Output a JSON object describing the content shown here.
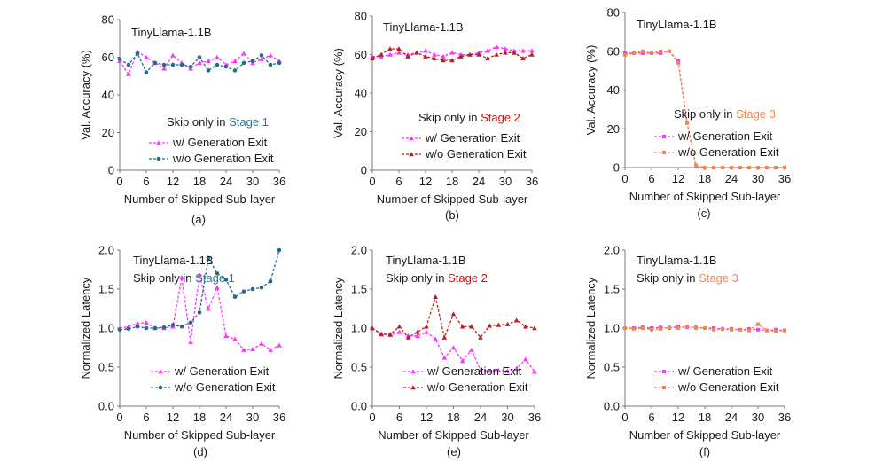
{
  "figure": {
    "captions": [
      "(a)",
      "(b)",
      "(c)",
      "(d)",
      "(e)",
      "(f)"
    ]
  },
  "colors": {
    "with_exit": "#ff33ff",
    "without_exit_stage1": "#1f6f8b",
    "without_exit_stage2": "#b22222",
    "without_exit_stage3": "#f08a4b",
    "stage1_label": "#2a7a9a",
    "stage2_label": "#d01010",
    "stage3_label": "#f08a4b"
  },
  "chart_data": [
    {
      "type": "line",
      "panel": "a",
      "title": "TinyLlama-1.1B",
      "annotation_prefix": "Skip only in ",
      "annotation_stage": "Stage 1",
      "stage_color_key": "stage1_label",
      "xlabel": "Number of Skipped Sub-layer",
      "ylabel": "Val. Accuracy (%)",
      "xlim": [
        0,
        36
      ],
      "ylim": [
        0,
        80
      ],
      "xticks": [
        0,
        6,
        12,
        18,
        24,
        30,
        36
      ],
      "yticks": [
        0,
        20,
        40,
        60,
        80
      ],
      "legend_position": "center-right",
      "series": [
        {
          "name": "w/ Generation Exit",
          "color_key": "with_exit",
          "marker": "triangle",
          "x": [
            0,
            2,
            4,
            6,
            8,
            10,
            12,
            14,
            16,
            18,
            20,
            22,
            24,
            26,
            28,
            30,
            32,
            34,
            36
          ],
          "y": [
            58,
            51,
            63,
            60,
            57,
            54,
            61,
            57,
            54,
            57,
            58,
            60,
            56,
            58,
            62,
            57,
            59,
            61,
            58
          ]
        },
        {
          "name": "w/o Generation Exit",
          "color_key": "without_exit_stage1",
          "marker": "circle",
          "x": [
            0,
            2,
            4,
            6,
            8,
            10,
            12,
            14,
            16,
            18,
            20,
            22,
            24,
            26,
            28,
            30,
            32,
            34,
            36
          ],
          "y": [
            59,
            56,
            62,
            52,
            57,
            56,
            56,
            56,
            55,
            60,
            53,
            56,
            55,
            53,
            57,
            58,
            61,
            56,
            57
          ]
        }
      ]
    },
    {
      "type": "line",
      "panel": "b",
      "title": "TinyLlama-1.1B",
      "annotation_prefix": "Skip only in ",
      "annotation_stage": "Stage 2",
      "stage_color_key": "stage2_label",
      "xlabel": "Number of Skipped Sub-layer",
      "ylabel": "Val. Accuracy (%)",
      "xlim": [
        0,
        36
      ],
      "ylim": [
        0,
        80
      ],
      "xticks": [
        0,
        6,
        12,
        18,
        24,
        30,
        36
      ],
      "yticks": [
        0,
        20,
        40,
        60,
        80
      ],
      "legend_position": "lower-right",
      "series": [
        {
          "name": "w/ Generation Exit",
          "color_key": "with_exit",
          "marker": "triangle",
          "x": [
            0,
            2,
            4,
            6,
            8,
            10,
            12,
            14,
            16,
            18,
            20,
            22,
            24,
            26,
            28,
            30,
            32,
            34,
            36
          ],
          "y": [
            59,
            59,
            60,
            61,
            60,
            61,
            62,
            60,
            59,
            61,
            60,
            60,
            61,
            62,
            64,
            63,
            62,
            62,
            62
          ]
        },
        {
          "name": "w/o Generation Exit",
          "color_key": "without_exit_stage2",
          "marker": "triangle",
          "x": [
            0,
            2,
            4,
            6,
            8,
            10,
            12,
            14,
            16,
            18,
            20,
            22,
            24,
            26,
            28,
            30,
            32,
            34,
            36
          ],
          "y": [
            58,
            60,
            63,
            63,
            59,
            61,
            59,
            58,
            57,
            57,
            59,
            60,
            60,
            58,
            60,
            61,
            61,
            58,
            60
          ]
        }
      ]
    },
    {
      "type": "line",
      "panel": "c",
      "title": "TinyLlama-1.1B",
      "annotation_prefix": "Skip only in ",
      "annotation_stage": "Stage 3",
      "stage_color_key": "stage3_label",
      "xlabel": "Number of Skipped Sub-layer",
      "ylabel": "Val. Accuracy (%)",
      "xlim": [
        0,
        36
      ],
      "ylim": [
        0,
        80
      ],
      "xticks": [
        0,
        6,
        12,
        18,
        24,
        30,
        36
      ],
      "yticks": [
        0,
        20,
        40,
        60,
        80
      ],
      "legend_position": "lower-right",
      "series": [
        {
          "name": "w/ Generation Exit",
          "color_key": "with_exit",
          "marker": "square",
          "x": [
            0,
            2,
            4,
            6,
            8,
            10,
            12,
            14,
            16,
            18,
            20,
            22,
            24,
            26,
            28,
            30,
            32,
            34,
            36
          ],
          "y": [
            59,
            59,
            59,
            59,
            59,
            60,
            55,
            23,
            1,
            0,
            0,
            0,
            0,
            0,
            0,
            0,
            0,
            0,
            0
          ]
        },
        {
          "name": "w/o Generation Exit",
          "color_key": "without_exit_stage3",
          "marker": "square",
          "x": [
            0,
            2,
            4,
            6,
            8,
            10,
            12,
            14,
            16,
            18,
            20,
            22,
            24,
            26,
            28,
            30,
            32,
            34,
            36
          ],
          "y": [
            58,
            59,
            60,
            59,
            60,
            60,
            54,
            23,
            1,
            0,
            0,
            0,
            0,
            0,
            0,
            0,
            0,
            0,
            0
          ]
        }
      ]
    },
    {
      "type": "line",
      "panel": "d",
      "title": "TinyLlama-1.1B",
      "annotation_prefix": "Skip only in ",
      "annotation_stage": "Stage 1",
      "stage_color_key": "stage1_label",
      "xlabel": "Number of Skipped Sub-layer",
      "ylabel": "Normalized Latency",
      "xlim": [
        0,
        36
      ],
      "ylim": [
        0.0,
        2.0
      ],
      "xticks": [
        0,
        6,
        12,
        18,
        24,
        30,
        36
      ],
      "yticks": [
        0.0,
        0.5,
        1.0,
        1.5,
        2.0
      ],
      "yticklabels": [
        "0.0",
        "0.5",
        "1.0",
        "1.5",
        "2.0"
      ],
      "legend_position": "lower-right",
      "series": [
        {
          "name": "w/ Generation Exit",
          "color_key": "with_exit",
          "marker": "triangle",
          "x": [
            0,
            2,
            4,
            6,
            8,
            10,
            12,
            14,
            16,
            18,
            20,
            22,
            24,
            26,
            28,
            30,
            32,
            34,
            36
          ],
          "y": [
            1.0,
            1.02,
            1.06,
            1.07,
            1.0,
            1.0,
            1.02,
            1.65,
            0.82,
            1.68,
            1.25,
            1.52,
            0.9,
            0.86,
            0.72,
            0.73,
            0.8,
            0.72,
            0.78
          ]
        },
        {
          "name": "w/o Generation Exit",
          "color_key": "without_exit_stage1",
          "marker": "circle",
          "x": [
            0,
            2,
            4,
            6,
            8,
            10,
            12,
            14,
            16,
            18,
            20,
            22,
            24,
            26,
            28,
            30,
            32,
            34,
            36
          ],
          "y": [
            0.98,
            0.99,
            1.02,
            1.0,
            1.0,
            1.01,
            1.04,
            1.02,
            1.07,
            1.2,
            1.9,
            1.7,
            1.62,
            1.4,
            1.47,
            1.5,
            1.52,
            1.6,
            2.0
          ]
        }
      ]
    },
    {
      "type": "line",
      "panel": "e",
      "title": "TinyLlama-1.1B",
      "annotation_prefix": "Skip only in ",
      "annotation_stage": "Stage 2",
      "stage_color_key": "stage2_label",
      "xlabel": "Number of Skipped Sub-layer",
      "ylabel": "Normalized Latency",
      "xlim": [
        0,
        36
      ],
      "ylim": [
        0.0,
        2.0
      ],
      "xticks": [
        0,
        6,
        12,
        18,
        24,
        30,
        36
      ],
      "yticks": [
        0.0,
        0.5,
        1.0,
        1.5,
        2.0
      ],
      "yticklabels": [
        "0.0",
        "0.5",
        "1.0",
        "1.5",
        "2.0"
      ],
      "legend_position": "lower-right",
      "series": [
        {
          "name": "w/ Generation Exit",
          "color_key": "with_exit",
          "marker": "triangle",
          "x": [
            0,
            2,
            4,
            6,
            8,
            10,
            12,
            14,
            16,
            18,
            20,
            22,
            24,
            26,
            28,
            30,
            32,
            34,
            36
          ],
          "y": [
            1.0,
            0.93,
            0.91,
            0.95,
            0.9,
            0.9,
            0.95,
            0.86,
            0.62,
            0.75,
            0.58,
            0.72,
            0.46,
            0.45,
            0.46,
            0.45,
            0.48,
            0.6,
            0.44
          ]
        },
        {
          "name": "w/o Generation Exit",
          "color_key": "without_exit_stage2",
          "marker": "triangle",
          "x": [
            0,
            2,
            4,
            6,
            8,
            10,
            12,
            14,
            16,
            18,
            20,
            22,
            24,
            26,
            28,
            30,
            32,
            34,
            36
          ],
          "y": [
            1.0,
            0.92,
            0.92,
            1.02,
            0.88,
            0.95,
            1.02,
            1.4,
            0.88,
            1.18,
            1.02,
            1.02,
            0.88,
            1.03,
            1.04,
            1.05,
            1.1,
            1.02,
            1.0
          ]
        }
      ]
    },
    {
      "type": "line",
      "panel": "f",
      "title": "TinyLlama-1.1B",
      "annotation_prefix": "Skip only in ",
      "annotation_stage": "Stage 3",
      "stage_color_key": "stage3_label",
      "xlabel": "Number of Skipped Sub-layer",
      "ylabel": "Normalized Latency",
      "xlim": [
        0,
        36
      ],
      "ylim": [
        0.0,
        2.0
      ],
      "xticks": [
        0,
        6,
        12,
        18,
        24,
        30,
        36
      ],
      "yticks": [
        0.0,
        0.5,
        1.0,
        1.5,
        2.0
      ],
      "yticklabels": [
        "0.0",
        "0.5",
        "1.0",
        "1.5",
        "2.0"
      ],
      "legend_position": "lower-right",
      "series": [
        {
          "name": "w/ Generation Exit",
          "color_key": "with_exit",
          "marker": "square",
          "x": [
            0,
            2,
            4,
            6,
            8,
            10,
            12,
            14,
            16,
            18,
            20,
            22,
            24,
            26,
            28,
            30,
            32,
            34,
            36
          ],
          "y": [
            1.0,
            1.0,
            1.01,
            1.0,
            1.01,
            1.0,
            1.02,
            1.01,
            1.01,
            1.0,
            1.0,
            0.99,
            0.99,
            0.98,
            0.99,
            0.98,
            0.97,
            0.98,
            0.97
          ]
        },
        {
          "name": "w/o Generation Exit",
          "color_key": "without_exit_stage3",
          "marker": "square",
          "x": [
            0,
            2,
            4,
            6,
            8,
            10,
            12,
            14,
            16,
            18,
            20,
            22,
            24,
            26,
            28,
            30,
            32,
            34,
            36
          ],
          "y": [
            1.0,
            0.99,
            1.0,
            0.98,
            0.99,
            1.01,
            1.0,
            1.02,
            1.0,
            1.0,
            0.98,
            0.99,
            0.98,
            0.98,
            0.97,
            1.05,
            0.97,
            0.96,
            0.97
          ]
        }
      ]
    }
  ]
}
